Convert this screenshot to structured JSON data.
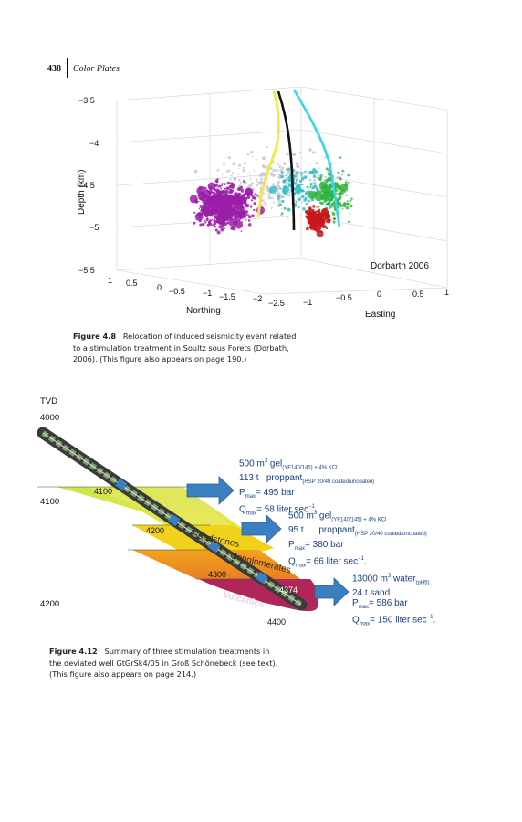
{
  "header": {
    "page_number": "438",
    "running_title": "Color Plates"
  },
  "figure1": {
    "label": "Figure 4.8",
    "caption": "Relocation of induced seismicity event related to a stimulation treatment in Soultz sous Forets (Dorbath, 2006). (This figure also appears on page 190.)",
    "caption_lines": [
      "Relocation of induced seismicity event related",
      "to a stimulation treatment in Soultz sous Forets (Dorbath,",
      "2006). (This figure also appears on page 190.)"
    ],
    "z_label": "Depth (km)",
    "z_ticks": [
      "−3.5",
      "−4",
      "−4.5",
      "−5",
      "−5.5"
    ],
    "northing_label": "Northing",
    "northing_ticks": [
      "1",
      "0.5",
      "0",
      "−0.5",
      "−1",
      "−1.5",
      "−2",
      "−2.5"
    ],
    "easting_label": "Easting",
    "easting_ticks": [
      "−1",
      "−0.5",
      "0",
      "0.5",
      "1"
    ],
    "annotation": "Dorbarth 2006",
    "colors": {
      "magenta_cluster": "#9b1fa8",
      "cyan_cluster": "#2fbfc4",
      "green_cluster": "#31b33a",
      "red_cluster": "#c8161c",
      "well_yellow": "#f2e84a",
      "well_black": "#111111",
      "well_cyan": "#38d7e6"
    }
  },
  "figure2": {
    "label": "Figure 4.12",
    "caption_lines": [
      "Summary of three stimulation treatments in",
      "the deviated well GtGrSk4/05 in Groß Schönebeck (see text).",
      "(This figure also appears on page 214.)"
    ],
    "tvd_label": "TVD",
    "tvd_ticks": [
      "4000",
      "4100",
      "4200"
    ],
    "md_labels": [
      "4100",
      "4200",
      "4300",
      "4374",
      "4400"
    ],
    "layers": [
      "Sandstones",
      "Conglomerates",
      "Volcanics"
    ],
    "treatments": [
      {
        "line1_a": "500 m",
        "line1_sup": "3",
        "line1_b": " gel",
        "line1_sub": "(YF140/145) + 4% KCl",
        "line2_a": "113 t",
        "line2_b": "proppant",
        "line2_sub": "(HSP 20/40 coated/uncoated)",
        "pmax": "495 bar",
        "qmax": "58 liter sec",
        "qmax_sup": "−1",
        "qmax_end": "."
      },
      {
        "line1_a": "500 m",
        "line1_sup": "3",
        "line1_b": " gel",
        "line1_sub": "(YF140/145) + 4% KCl",
        "line2_a": "95 t",
        "line2_b": "proppant",
        "line2_sub": "(HSP 20/40 coated/uncoated)",
        "pmax": "380 bar",
        "qmax": "66 liter sec",
        "qmax_sup": "−1",
        "qmax_end": "."
      },
      {
        "line1_a": "13000 m",
        "line1_sup": "3",
        "line1_b": " water",
        "line1_sub": "(pH5)",
        "line2_a": "24 t sand",
        "line2_b": "",
        "line2_sub": "",
        "pmax": "586 bar",
        "qmax": "150 liter sec",
        "qmax_sup": "−1",
        "qmax_end": "."
      }
    ],
    "pmax_label": "P",
    "pmax_sub": "max",
    "qmax_label": "Q",
    "qmax_sub": "max",
    "colors": {
      "yellow_layer": "#e5e61a",
      "orange_layer": "#ef8a22",
      "volcanic_layer": "#b0265a",
      "arrow": "#3c7fc0",
      "text_blue": "#1b3f8a"
    }
  }
}
